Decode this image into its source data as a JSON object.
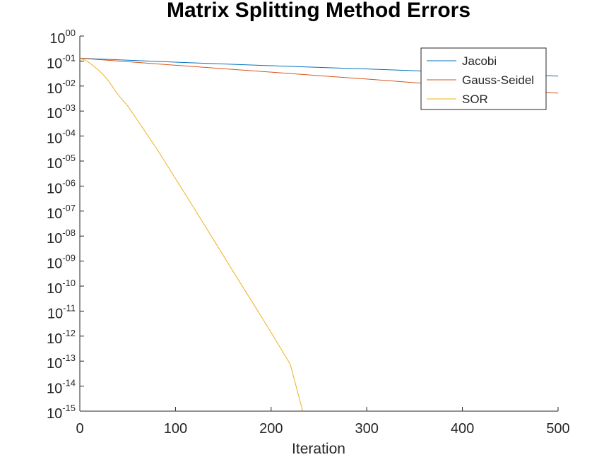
{
  "chart_data": {
    "type": "line",
    "title": "Matrix Splitting Method Errors",
    "xlabel": "Iteration",
    "ylabel": "",
    "xlim": [
      0,
      500
    ],
    "ylim": [
      1e-15,
      1
    ],
    "yscale": "log",
    "grid": false,
    "legend_position": "top-right",
    "x_ticks": [
      0,
      100,
      200,
      300,
      400,
      500
    ],
    "x_tick_labels": [
      "0",
      "100",
      "200",
      "300",
      "400",
      "500"
    ],
    "y_tick_labels": [
      {
        "base": "10",
        "exp": "00"
      },
      {
        "base": "10",
        "exp": "-01"
      },
      {
        "base": "10",
        "exp": "-02"
      },
      {
        "base": "10",
        "exp": "-03"
      },
      {
        "base": "10",
        "exp": "-04"
      },
      {
        "base": "10",
        "exp": "-05"
      },
      {
        "base": "10",
        "exp": "-06"
      },
      {
        "base": "10",
        "exp": "-07"
      },
      {
        "base": "10",
        "exp": "-08"
      },
      {
        "base": "10",
        "exp": "-09"
      },
      {
        "base": "10",
        "exp": "-10"
      },
      {
        "base": "10",
        "exp": "-11"
      },
      {
        "base": "10",
        "exp": "-12"
      },
      {
        "base": "10",
        "exp": "-13"
      },
      {
        "base": "10",
        "exp": "-14"
      },
      {
        "base": "10",
        "exp": "-15"
      }
    ],
    "y_tick_values": [
      1,
      0.1,
      0.01,
      0.001,
      0.0001,
      1e-05,
      1e-06,
      1e-07,
      1e-08,
      1e-09,
      1e-10,
      1e-11,
      1e-12,
      1e-13,
      1e-14,
      1e-15
    ],
    "series": [
      {
        "name": "Jacobi",
        "color": "#0072BD",
        "x": [
          0,
          100,
          200,
          300,
          400,
          500
        ],
        "y": [
          0.13,
          0.09,
          0.065,
          0.048,
          0.035,
          0.025
        ]
      },
      {
        "name": "Gauss-Seidel",
        "color": "#D95319",
        "x": [
          0,
          100,
          200,
          300,
          400,
          500
        ],
        "y": [
          0.13,
          0.068,
          0.036,
          0.019,
          0.0098,
          0.0052
        ]
      },
      {
        "name": "SOR",
        "color": "#EDB120",
        "x": [
          0,
          5,
          10,
          15,
          20,
          25,
          30,
          35,
          40,
          50,
          60,
          70,
          80,
          100,
          120,
          140,
          160,
          180,
          200,
          220,
          233
        ],
        "y": [
          0.13,
          0.11,
          0.085,
          0.06,
          0.042,
          0.027,
          0.016,
          0.0085,
          0.0045,
          0.0016,
          0.00045,
          0.00012,
          3.3e-05,
          2e-06,
          1.2e-07,
          7e-09,
          4e-10,
          2.4e-11,
          1.4e-12,
          7.5e-14,
          1e-15
        ]
      }
    ]
  }
}
